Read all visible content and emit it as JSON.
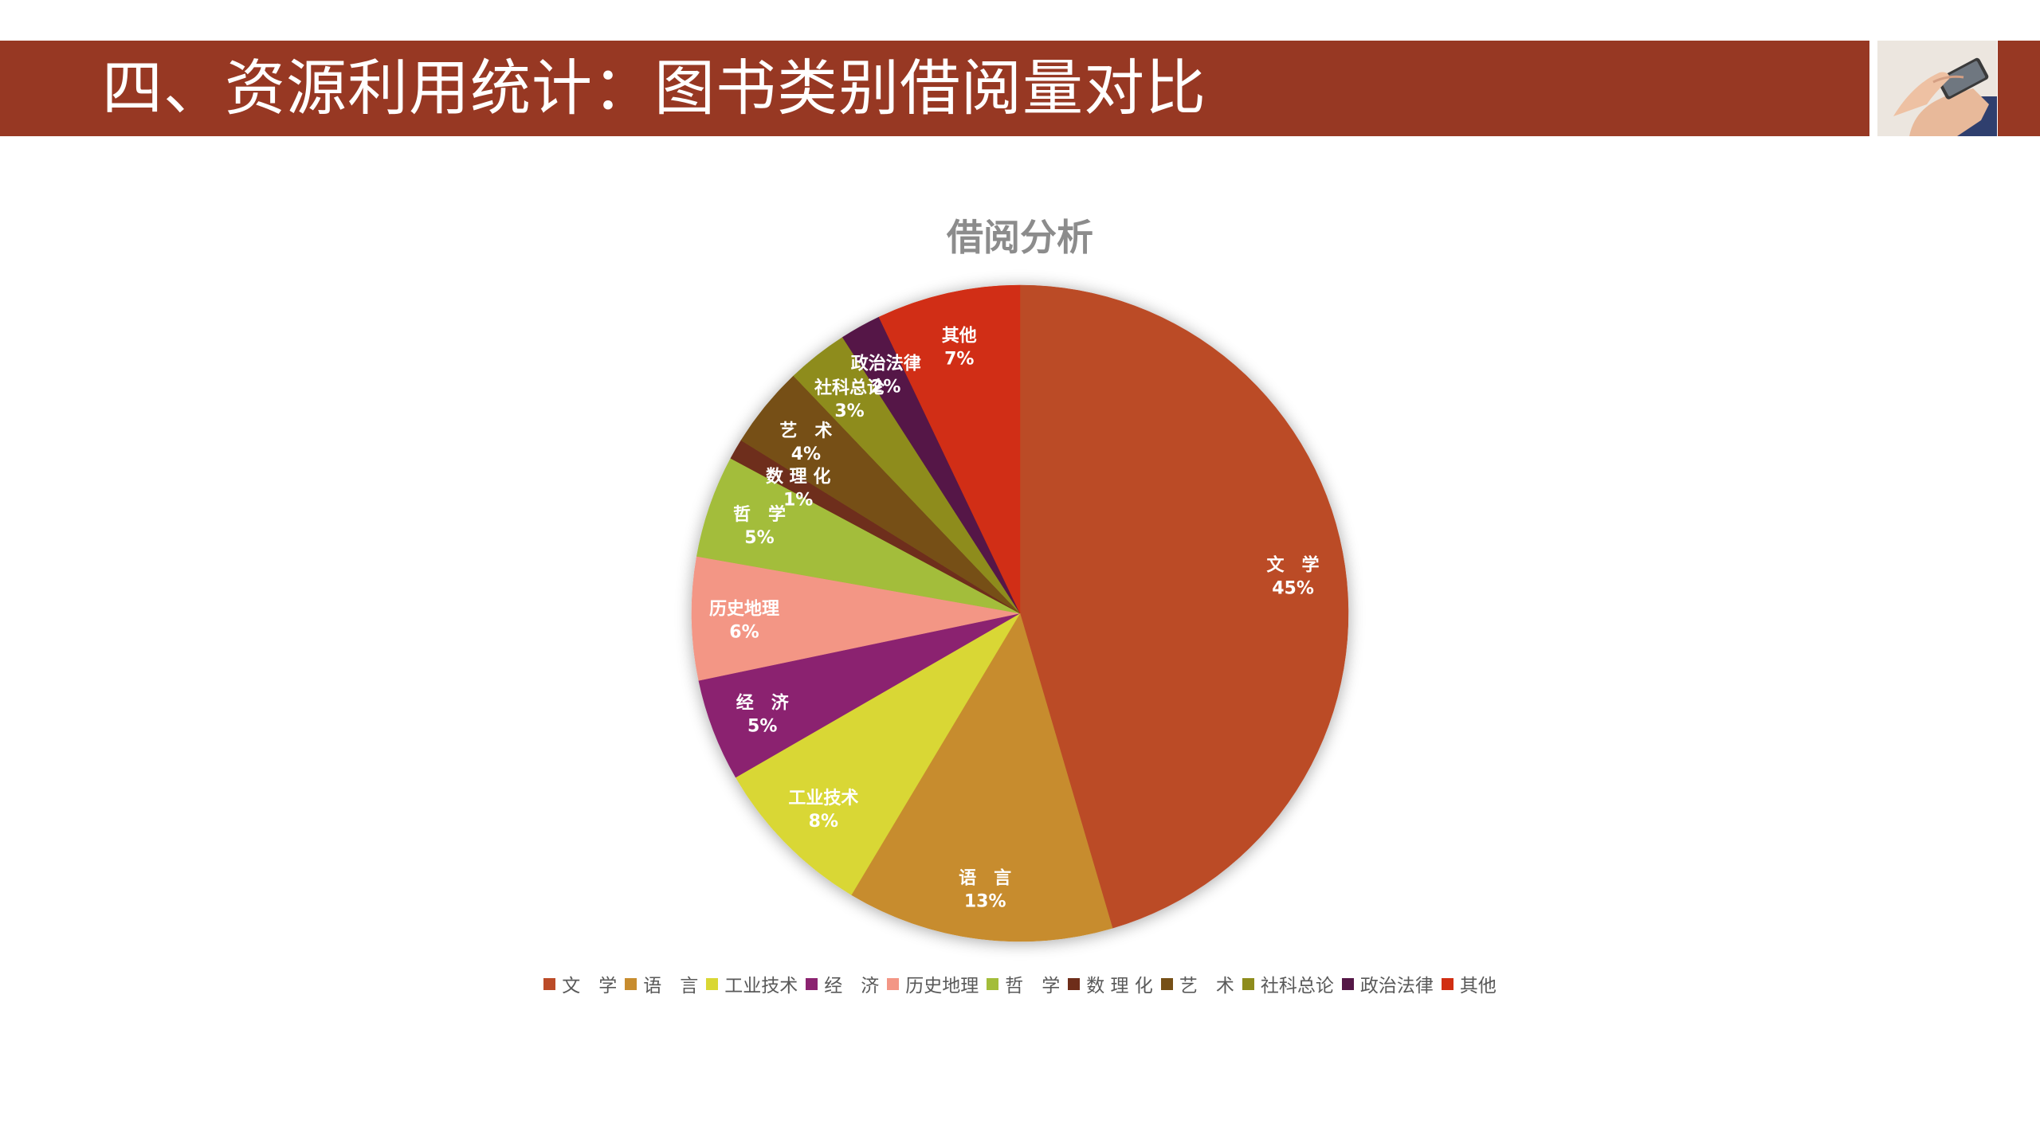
{
  "slide": {
    "title": "四、资源利用统计：图书类别借阅量对比",
    "band_color": "#973823",
    "photo_icon": "hand-holding-phone-photo"
  },
  "chart_data": {
    "type": "pie",
    "title": "借阅分析",
    "legend_position": "bottom",
    "start_angle_deg": 0,
    "direction": "clockwise",
    "slices": [
      {
        "name": "文　学",
        "label_line1": "文　学",
        "value": 45,
        "display": "45%",
        "color": "#BB4B28"
      },
      {
        "name": "语　言",
        "label_line1": "语　言",
        "value": 13,
        "display": "13%",
        "color": "#C78C2F"
      },
      {
        "name": "工业技术",
        "label_line1": "工业技术",
        "value": 8,
        "display": "8%",
        "color": "#D9D734"
      },
      {
        "name": "经　济",
        "label_line1": "经　济",
        "value": 5,
        "display": "5%",
        "color": "#8B2370"
      },
      {
        "name": "历史地理",
        "label_line1": "历史地理",
        "value": 6,
        "display": "6%",
        "color": "#F39685"
      },
      {
        "name": "哲　学",
        "label_line1": "哲　学",
        "value": 5,
        "display": "5%",
        "color": "#A3BD3A"
      },
      {
        "name": "数 理 化",
        "label_line1": "数 理 化",
        "value": 1,
        "display": "1%",
        "color": "#6E2D1A"
      },
      {
        "name": "艺　术",
        "label_line1": "艺　术",
        "value": 4,
        "display": "4%",
        "color": "#765017"
      },
      {
        "name": "社科总论",
        "label_line1": "社科总论",
        "value": 3,
        "display": "3%",
        "color": "#8E8C1C"
      },
      {
        "name": "政治法律",
        "label_line1": "政治法律",
        "value": 2,
        "display": "2%",
        "color": "#541746"
      },
      {
        "name": "其他",
        "label_line1": "其他",
        "value": 7,
        "display": "7%",
        "color": "#D12E12"
      }
    ]
  }
}
